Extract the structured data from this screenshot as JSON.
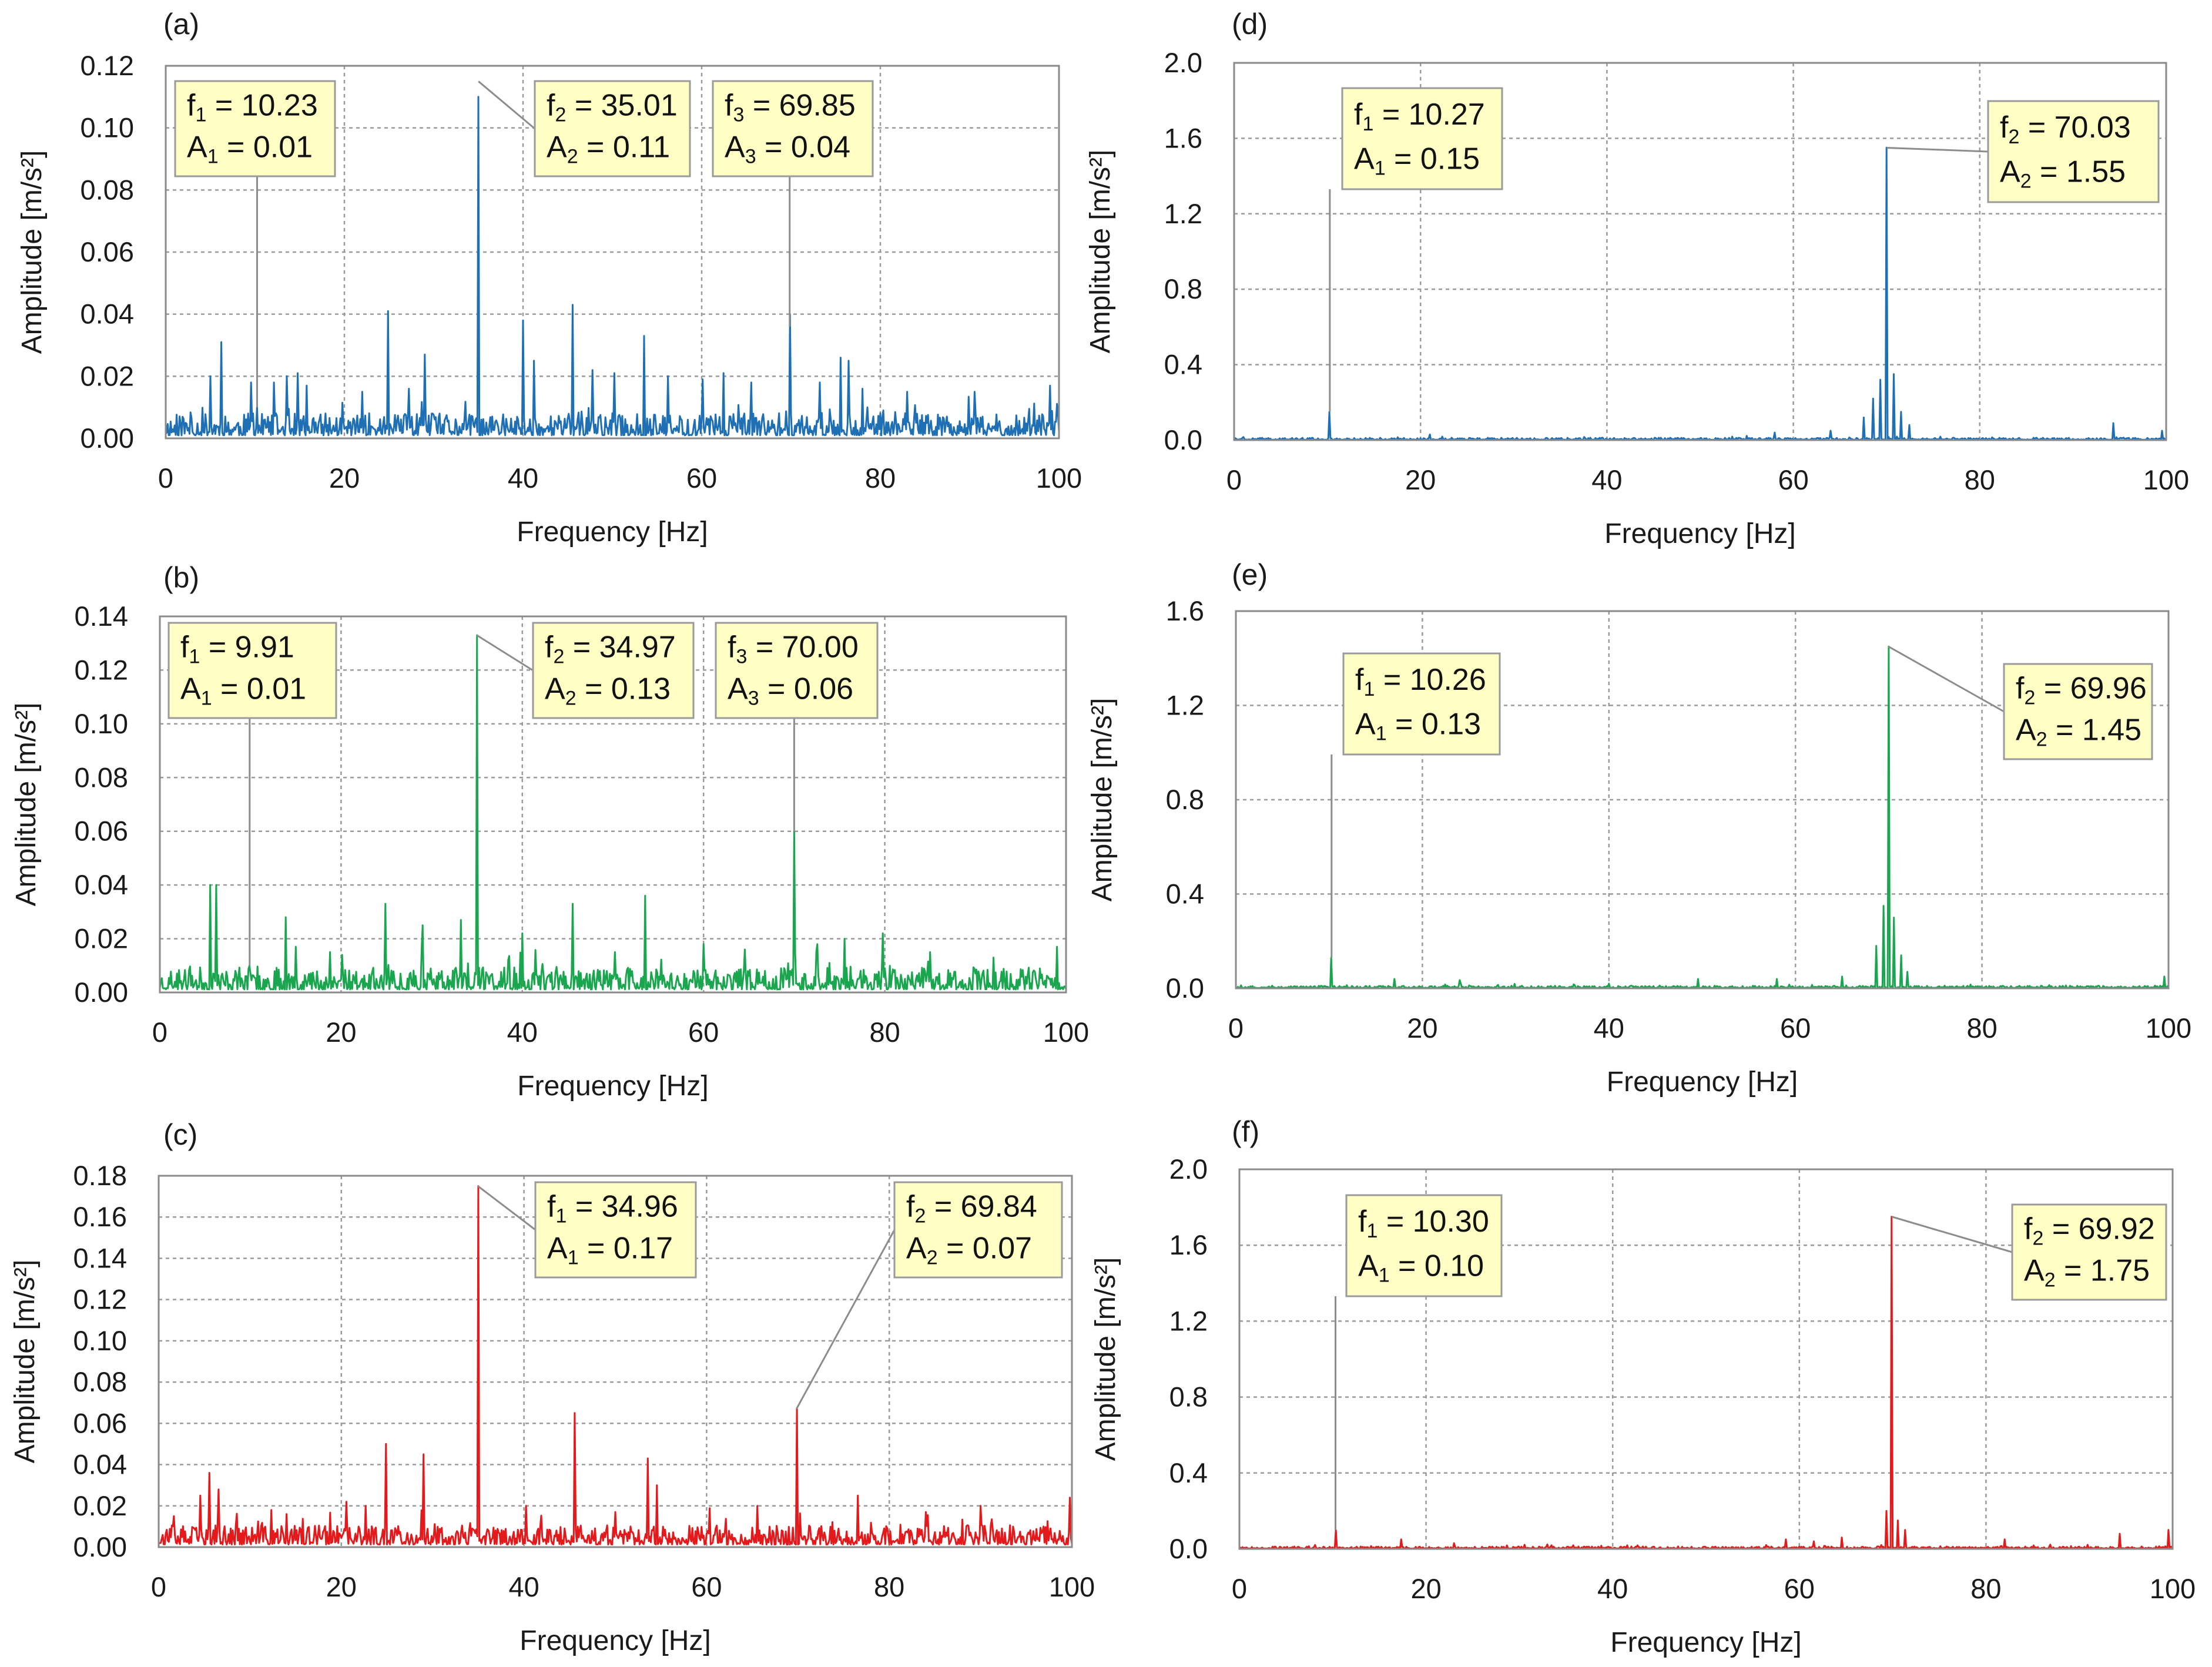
{
  "chart_data": [
    {
      "id": "a",
      "type": "line",
      "panel_label": "(a)",
      "xlabel": "Frequency [Hz]",
      "ylabel": "Amplitude [m/s²]",
      "xlim": [
        0,
        100
      ],
      "ylim": [
        0,
        0.12
      ],
      "xticks": [
        "0",
        "20",
        "40",
        "60",
        "80",
        "100"
      ],
      "yticks": [
        "0.00",
        "0.02",
        "0.04",
        "0.06",
        "0.08",
        "0.10",
        "0.12"
      ],
      "grid": true,
      "series": [
        {
          "name": "(a)",
          "color": "#1f6fb4",
          "peaks": [
            [
              5,
              0.02
            ],
            [
              6.2,
              0.031
            ],
            [
              9.5,
              0.018
            ],
            [
              10.23,
              0.01
            ],
            [
              12.1,
              0.018
            ],
            [
              13.5,
              0.02
            ],
            [
              14.8,
              0.021
            ],
            [
              15.8,
              0.017
            ],
            [
              22,
              0.015
            ],
            [
              24.9,
              0.041
            ],
            [
              27.2,
              0.016
            ],
            [
              29,
              0.027
            ],
            [
              35.01,
              0.11
            ],
            [
              40,
              0.038
            ],
            [
              41.2,
              0.025
            ],
            [
              45.5,
              0.043
            ],
            [
              47.8,
              0.022
            ],
            [
              50.2,
              0.021
            ],
            [
              53.6,
              0.033
            ],
            [
              56.2,
              0.02
            ],
            [
              60.1,
              0.019
            ],
            [
              62.4,
              0.021
            ],
            [
              65.5,
              0.018
            ],
            [
              69.85,
              0.04
            ],
            [
              73.2,
              0.018
            ],
            [
              75.6,
              0.026
            ],
            [
              76.4,
              0.025
            ],
            [
              78,
              0.016
            ],
            [
              83,
              0.015
            ],
            [
              90.5,
              0.015
            ],
            [
              99,
              0.017
            ]
          ],
          "noise_level": 0.0065,
          "seed": 11
        }
      ],
      "annotations": [
        {
          "sym": "f",
          "idx": "1",
          "freq": "10.23",
          "amp_sym": "A",
          "amp": "0.01",
          "x": 10.23,
          "y": 0.01
        },
        {
          "sym": "f",
          "idx": "2",
          "freq": "35.01",
          "amp_sym": "A",
          "amp": "0.11",
          "x": 35.01,
          "y": 0.115
        },
        {
          "sym": "f",
          "idx": "3",
          "freq": "69.85",
          "amp_sym": "A",
          "amp": "0.04",
          "x": 69.85,
          "y": 0.036
        }
      ]
    },
    {
      "id": "b",
      "type": "line",
      "panel_label": "(b)",
      "xlabel": "Frequency [Hz]",
      "ylabel": "Amplitude [m/s²]",
      "xlim": [
        0,
        100
      ],
      "ylim": [
        0,
        0.14
      ],
      "xticks": [
        "0",
        "20",
        "40",
        "60",
        "80",
        "100"
      ],
      "yticks": [
        "0.00",
        "0.02",
        "0.04",
        "0.06",
        "0.08",
        "0.10",
        "0.12",
        "0.14"
      ],
      "grid": true,
      "series": [
        {
          "name": "(b)",
          "color": "#1aa64e",
          "peaks": [
            [
              5.5,
              0.04
            ],
            [
              6.2,
              0.04
            ],
            [
              9.91,
              0.01
            ],
            [
              13.9,
              0.028
            ],
            [
              15,
              0.017
            ],
            [
              20.1,
              0.014
            ],
            [
              24.9,
              0.033
            ],
            [
              29,
              0.025
            ],
            [
              33.2,
              0.027
            ],
            [
              34.97,
              0.133
            ],
            [
              40,
              0.022
            ],
            [
              45.5,
              0.033
            ],
            [
              50.2,
              0.015
            ],
            [
              53.6,
              0.036
            ],
            [
              60,
              0.018
            ],
            [
              64.5,
              0.016
            ],
            [
              70,
              0.06
            ],
            [
              72.5,
              0.018
            ],
            [
              75.6,
              0.02
            ],
            [
              79.8,
              0.022
            ],
            [
              85,
              0.015
            ],
            [
              92,
              0.013
            ],
            [
              99,
              0.017
            ]
          ],
          "noise_level": 0.0075,
          "seed": 23
        }
      ],
      "annotations": [
        {
          "sym": "f",
          "idx": "1",
          "freq": "9.91",
          "amp_sym": "A",
          "amp": "0.01",
          "x": 9.91,
          "y": 0.01
        },
        {
          "sym": "f",
          "idx": "2",
          "freq": "34.97",
          "amp_sym": "A",
          "amp": "0.13",
          "x": 34.97,
          "y": 0.133
        },
        {
          "sym": "f",
          "idx": "3",
          "freq": "70.00",
          "amp_sym": "A",
          "amp": "0.06",
          "x": 70.0,
          "y": 0.06
        }
      ]
    },
    {
      "id": "c",
      "type": "line",
      "panel_label": "(c)",
      "xlabel": "Frequency [Hz]",
      "ylabel": "Amplitude [m/s²]",
      "xlim": [
        0,
        100
      ],
      "ylim": [
        0,
        0.18
      ],
      "xticks": [
        "0",
        "20",
        "40",
        "60",
        "80",
        "100"
      ],
      "yticks": [
        "0.00",
        "0.02",
        "0.04",
        "0.06",
        "0.08",
        "0.10",
        "0.12",
        "0.14",
        "0.16",
        "0.18"
      ],
      "grid": true,
      "series": [
        {
          "name": "(c)",
          "color": "#e3191c",
          "peaks": [
            [
              4.5,
              0.025
            ],
            [
              5.5,
              0.036
            ],
            [
              6.5,
              0.028
            ],
            [
              12.3,
              0.018
            ],
            [
              14,
              0.016
            ],
            [
              20.5,
              0.022
            ],
            [
              22.7,
              0.02
            ],
            [
              24.9,
              0.05
            ],
            [
              29,
              0.045
            ],
            [
              34.96,
              0.175
            ],
            [
              40.2,
              0.02
            ],
            [
              45.5,
              0.065
            ],
            [
              50,
              0.017
            ],
            [
              53.6,
              0.043
            ],
            [
              54.5,
              0.03
            ],
            [
              60.3,
              0.018
            ],
            [
              65.5,
              0.02
            ],
            [
              69.84,
              0.067
            ],
            [
              76.6,
              0.025
            ],
            [
              84,
              0.017
            ],
            [
              90,
              0.02
            ],
            [
              99.8,
              0.024
            ]
          ],
          "noise_level": 0.0085,
          "seed": 37
        }
      ],
      "annotations": [
        {
          "sym": "f",
          "idx": "1",
          "freq": "34.96",
          "amp_sym": "A",
          "amp": "0.17",
          "x": 34.96,
          "y": 0.175
        },
        {
          "sym": "f",
          "idx": "2",
          "freq": "69.84",
          "amp_sym": "A",
          "amp": "0.07",
          "x": 69.84,
          "y": 0.067
        }
      ]
    },
    {
      "id": "d",
      "type": "line",
      "panel_label": "(d)",
      "xlabel": "Frequency [Hz]",
      "ylabel": "Amplitude [m/s²]",
      "xlim": [
        0,
        100
      ],
      "ylim": [
        0,
        2.0
      ],
      "xticks": [
        "0",
        "20",
        "40",
        "60",
        "80",
        "100"
      ],
      "yticks": [
        "0.0",
        "0.4",
        "0.8",
        "1.2",
        "1.6",
        "2.0"
      ],
      "grid": true,
      "series": [
        {
          "name": "(d)",
          "color": "#1f6fb4",
          "peaks": [
            [
              10.27,
              0.15
            ],
            [
              21,
              0.03
            ],
            [
              58,
              0.04
            ],
            [
              64,
              0.05
            ],
            [
              67.5,
              0.12
            ],
            [
              68.6,
              0.22
            ],
            [
              69.3,
              0.32
            ],
            [
              70.03,
              1.55
            ],
            [
              70.8,
              0.35
            ],
            [
              71.5,
              0.15
            ],
            [
              72.4,
              0.08
            ],
            [
              94.3,
              0.09
            ],
            [
              99.5,
              0.05
            ]
          ],
          "noise_level": 0.01,
          "seed": 41
        }
      ],
      "annotations": [
        {
          "sym": "f",
          "idx": "1",
          "freq": "10.27",
          "amp_sym": "A",
          "amp": "0.15",
          "x": 10.27,
          "y": 0.15
        },
        {
          "sym": "f",
          "idx": "2",
          "freq": "70.03",
          "amp_sym": "A",
          "amp": "1.55",
          "x": 70.03,
          "y": 1.55
        }
      ]
    },
    {
      "id": "e",
      "type": "line",
      "panel_label": "(e)",
      "xlabel": "Frequency [Hz]",
      "ylabel": "Amplitude [m/s²]",
      "xlim": [
        0,
        100
      ],
      "ylim": [
        0,
        1.6
      ],
      "xticks": [
        "0",
        "20",
        "40",
        "60",
        "80",
        "100"
      ],
      "yticks": [
        "0.0",
        "0.4",
        "0.8",
        "1.2",
        "1.6"
      ],
      "grid": true,
      "series": [
        {
          "name": "(e)",
          "color": "#1aa64e",
          "peaks": [
            [
              10.26,
              0.13
            ],
            [
              17,
              0.04
            ],
            [
              24,
              0.035
            ],
            [
              40,
              0.02
            ],
            [
              49.5,
              0.04
            ],
            [
              58,
              0.04
            ],
            [
              65,
              0.05
            ],
            [
              68.7,
              0.18
            ],
            [
              69.4,
              0.35
            ],
            [
              69.96,
              1.45
            ],
            [
              70.6,
              0.3
            ],
            [
              71.3,
              0.14
            ],
            [
              72,
              0.07
            ],
            [
              99.6,
              0.05
            ]
          ],
          "noise_level": 0.009,
          "seed": 53
        }
      ],
      "annotations": [
        {
          "sym": "f",
          "idx": "1",
          "freq": "10.26",
          "amp_sym": "A",
          "amp": "0.13",
          "x": 10.26,
          "y": 0.13
        },
        {
          "sym": "f",
          "idx": "2",
          "freq": "69.96",
          "amp_sym": "A",
          "amp": "1.45",
          "x": 69.96,
          "y": 1.45
        }
      ]
    },
    {
      "id": "f",
      "type": "line",
      "panel_label": "(f)",
      "xlabel": "Frequency [Hz]",
      "ylabel": "Amplitude [m/s²]",
      "xlim": [
        0,
        100
      ],
      "ylim": [
        0,
        2.0
      ],
      "xticks": [
        "0",
        "20",
        "40",
        "60",
        "80",
        "100"
      ],
      "yticks": [
        "0.0",
        "0.4",
        "0.8",
        "1.2",
        "1.6",
        "2.0"
      ],
      "grid": true,
      "series": [
        {
          "name": "(f)",
          "color": "#e3191c",
          "peaks": [
            [
              10.3,
              0.1
            ],
            [
              17.3,
              0.05
            ],
            [
              23,
              0.03
            ],
            [
              58.5,
              0.05
            ],
            [
              61.5,
              0.04
            ],
            [
              64.5,
              0.06
            ],
            [
              69.3,
              0.2
            ],
            [
              69.92,
              1.75
            ],
            [
              70.5,
              0.15
            ],
            [
              71.3,
              0.1
            ],
            [
              82,
              0.05
            ],
            [
              94.3,
              0.08
            ],
            [
              99.6,
              0.1
            ]
          ],
          "noise_level": 0.01,
          "seed": 67
        }
      ],
      "annotations": [
        {
          "sym": "f",
          "idx": "1",
          "freq": "10.30",
          "amp_sym": "A",
          "amp": "0.10",
          "x": 10.3,
          "y": 0.1
        },
        {
          "sym": "f",
          "idx": "2",
          "freq": "69.92",
          "amp_sym": "A",
          "amp": "1.75",
          "x": 69.92,
          "y": 1.75
        }
      ]
    }
  ]
}
